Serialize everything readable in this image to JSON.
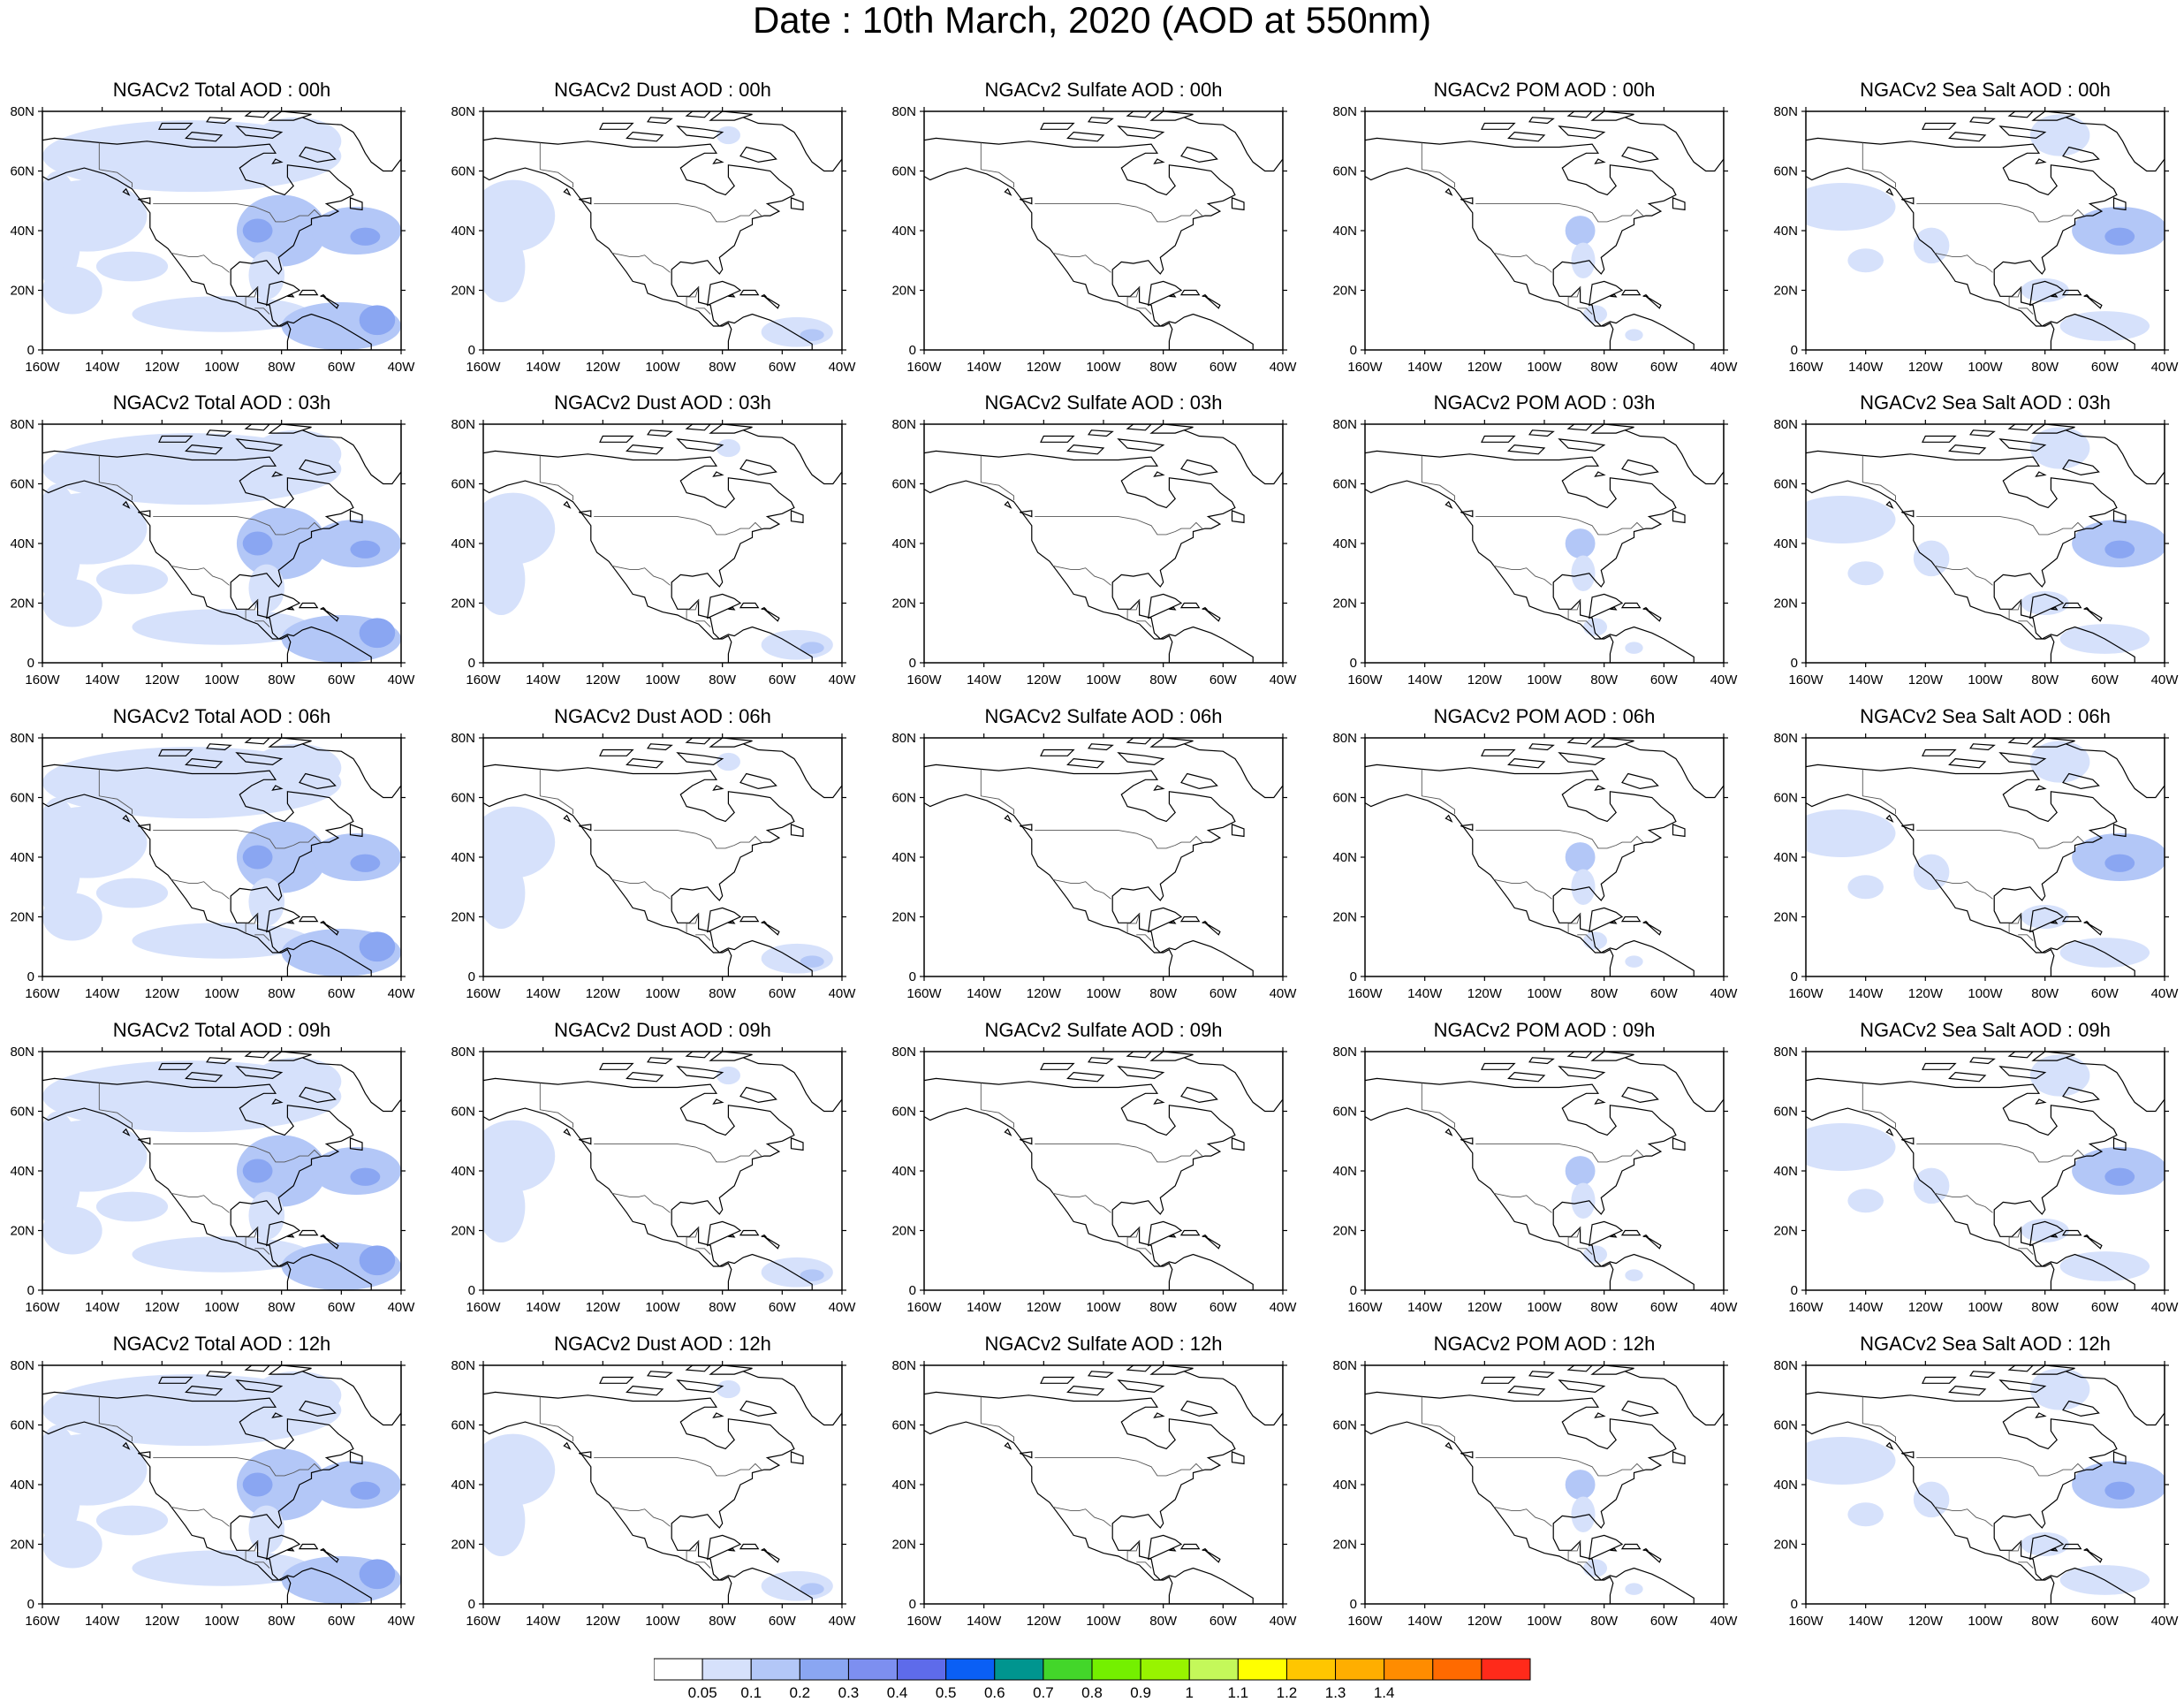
{
  "title": "Date : 10th March, 2020 (AOD at 550nm)",
  "lon_ticks": [
    "160W",
    "140W",
    "120W",
    "100W",
    "80W",
    "60W",
    "40W"
  ],
  "lat_ticks": [
    "0",
    "20N",
    "40N",
    "60N",
    "80N"
  ],
  "lon_range": [
    -160,
    -40
  ],
  "lat_range": [
    0,
    80
  ],
  "fill_colors": {
    "light": "#d6e1fb",
    "mid": "#b3c7f7",
    "dark": "#8aa6f2",
    "darkest": "#6f8bef"
  },
  "panels": [
    [
      {
        "title": "NGACv2 Total AOD : 00h",
        "species": "total"
      },
      {
        "title": "NGACv2 Dust AOD : 00h",
        "species": "dust"
      },
      {
        "title": "NGACv2 Sulfate AOD : 00h",
        "species": "sulfate"
      },
      {
        "title": "NGACv2 POM AOD : 00h",
        "species": "pom"
      },
      {
        "title": "NGACv2 Sea Salt AOD : 00h",
        "species": "seasalt"
      }
    ],
    [
      {
        "title": "NGACv2 Total AOD : 03h",
        "species": "total"
      },
      {
        "title": "NGACv2 Dust AOD : 03h",
        "species": "dust"
      },
      {
        "title": "NGACv2 Sulfate AOD : 03h",
        "species": "sulfate"
      },
      {
        "title": "NGACv2 POM AOD : 03h",
        "species": "pom"
      },
      {
        "title": "NGACv2 Sea Salt AOD : 03h",
        "species": "seasalt"
      }
    ],
    [
      {
        "title": "NGACv2 Total AOD : 06h",
        "species": "total"
      },
      {
        "title": "NGACv2 Dust AOD : 06h",
        "species": "dust"
      },
      {
        "title": "NGACv2 Sulfate AOD : 06h",
        "species": "sulfate"
      },
      {
        "title": "NGACv2 POM AOD : 06h",
        "species": "pom"
      },
      {
        "title": "NGACv2 Sea Salt AOD : 06h",
        "species": "seasalt"
      }
    ],
    [
      {
        "title": "NGACv2 Total AOD : 09h",
        "species": "total"
      },
      {
        "title": "NGACv2 Dust AOD : 09h",
        "species": "dust"
      },
      {
        "title": "NGACv2 Sulfate AOD : 09h",
        "species": "sulfate"
      },
      {
        "title": "NGACv2 POM AOD : 09h",
        "species": "pom"
      },
      {
        "title": "NGACv2 Sea Salt  AOD : 09h",
        "species": "seasalt"
      }
    ],
    [
      {
        "title": "NGACv2 Total AOD  : 12h",
        "species": "total"
      },
      {
        "title": "NGACv2 Dust AOD : 12h",
        "species": "dust"
      },
      {
        "title": "NGACv2 Sulfate AOD : 12h",
        "species": "sulfate"
      },
      {
        "title": "NGACv2 POM  AOD : 12h",
        "species": "pom"
      },
      {
        "title": "NGACv2 Sea Salt  AOD : 12h",
        "species": "seasalt"
      }
    ]
  ],
  "colorbar": {
    "colors": [
      "#ffffff",
      "#d6e1fb",
      "#b3c7f7",
      "#8aa6f2",
      "#7d8ff0",
      "#5e6bea",
      "#0a5ff5",
      "#00958f",
      "#43d62a",
      "#74f000",
      "#98f400",
      "#c4f85a",
      "#ffff00",
      "#ffc600",
      "#ffae00",
      "#ff8c00",
      "#ff6a00",
      "#ff2a1a"
    ],
    "labels": [
      "0.05",
      "0.1",
      "0.2",
      "0.3",
      "0.4",
      "0.5",
      "0.6",
      "0.7",
      "0.8",
      "0.9",
      "1",
      "1.1",
      "1.2",
      "1.3",
      "1.4"
    ]
  }
}
